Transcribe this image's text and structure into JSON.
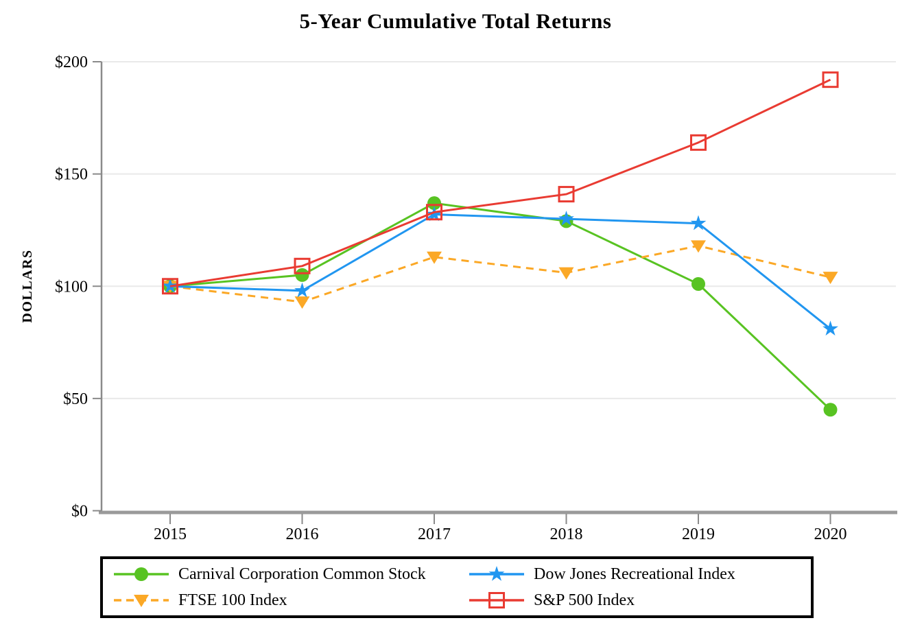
{
  "chart_data": {
    "type": "line",
    "title": "5-Year Cumulative Total Returns",
    "ylabel": "DOLLARS",
    "categories": [
      "2015",
      "2016",
      "2017",
      "2018",
      "2019",
      "2020"
    ],
    "ylim": [
      0,
      200
    ],
    "ytick_values": [
      0,
      50,
      100,
      150,
      200
    ],
    "ytick_labels": [
      "$0",
      "$50",
      "$100",
      "$150",
      "$200"
    ],
    "grid": "horizontal",
    "legend_position": "bottom-boxed",
    "series": [
      {
        "name": "Carnival Corporation Common Stock",
        "color": "#58c322",
        "marker": "circle",
        "line": "solid",
        "values": [
          100,
          105,
          137,
          129,
          101,
          45
        ]
      },
      {
        "name": "FTSE 100 Index",
        "color": "#fba826",
        "marker": "triangle-down",
        "line": "dashed",
        "values": [
          100,
          93,
          113,
          106,
          118,
          104
        ]
      },
      {
        "name": "Dow Jones Recreational Index",
        "color": "#2196f0",
        "marker": "star",
        "line": "solid",
        "values": [
          100,
          98,
          132,
          130,
          128,
          81
        ]
      },
      {
        "name": "S&P 500 Index",
        "color": "#e93b32",
        "marker": "square-open",
        "line": "solid",
        "values": [
          100,
          109,
          133,
          141,
          164,
          192
        ]
      }
    ]
  }
}
